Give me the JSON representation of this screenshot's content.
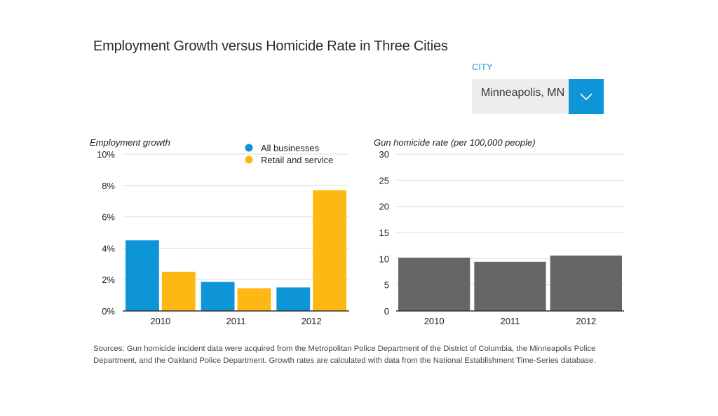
{
  "title": "Employment Growth versus Homicide Rate in Three Cities",
  "city_selector": {
    "label": "CITY",
    "selected": "Minneapolis, MN",
    "icon": "chevron-down-icon",
    "accent_color": "#0d95d8"
  },
  "sources": "Sources: Gun homicide incident data were acquired from the Metropolitan Police Department of the District of Columbia, the Minneapolis Police Department, and the Oakland Police Department. Growth rates are calculated with data from the National Establishment Time-Series database.",
  "chart_data": [
    {
      "type": "bar",
      "title": "",
      "ylabel": "Employment growth",
      "xlabel": "",
      "categories": [
        "2010",
        "2011",
        "2012"
      ],
      "series": [
        {
          "name": "All businesses",
          "color": "#0d95d8",
          "values": [
            4.5,
            1.85,
            1.5
          ]
        },
        {
          "name": "Retail and service",
          "color": "#fdb813",
          "values": [
            2.5,
            1.45,
            7.7
          ]
        }
      ],
      "ylim": [
        0,
        10
      ],
      "yticks": [
        0,
        2,
        4,
        6,
        8,
        10
      ],
      "ytick_labels": [
        "0%",
        "2%",
        "4%",
        "6%",
        "8%",
        "10%"
      ],
      "grid": true,
      "legend": "top-right"
    },
    {
      "type": "bar",
      "title": "",
      "ylabel": "Gun homicide rate (per 100,000 people)",
      "xlabel": "",
      "categories": [
        "2010",
        "2011",
        "2012"
      ],
      "series": [
        {
          "name": "Gun homicide rate",
          "color": "#666666",
          "values": [
            10.2,
            9.4,
            10.6
          ]
        }
      ],
      "ylim": [
        0,
        30
      ],
      "yticks": [
        0,
        5,
        10,
        15,
        20,
        25,
        30
      ],
      "ytick_labels": [
        "0",
        "5",
        "10",
        "15",
        "20",
        "25",
        "30"
      ],
      "grid": true,
      "legend": "none"
    }
  ]
}
